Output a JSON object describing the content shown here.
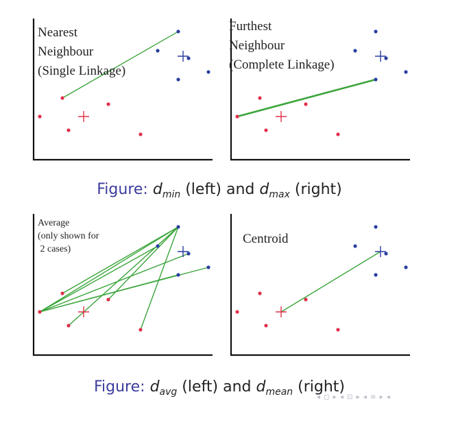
{
  "colors": {
    "red": "#e0304a",
    "blue": "#2a3fa0",
    "link": "#3aa53a",
    "axis": "#111111",
    "caption_blue": "#3c3c9e"
  },
  "panels": [
    {
      "id": "dmin",
      "title_lines": [
        "Nearest",
        "Neighbour",
        "(Single Linkage)"
      ],
      "links": [
        [
          1,
          0
        ]
      ]
    },
    {
      "id": "dmax",
      "title_lines": [
        "Furthest",
        "Neighbour",
        "(Complete Linkage)"
      ],
      "links": [
        [
          0,
          4
        ]
      ]
    },
    {
      "id": "davg",
      "title_lines": [
        "Average",
        "(only shown for",
        " 2 cases)"
      ],
      "links": [
        [
          0,
          0
        ],
        [
          0,
          1
        ],
        [
          0,
          2
        ],
        [
          0,
          3
        ],
        [
          0,
          4
        ],
        [
          1,
          0
        ],
        [
          2,
          0
        ],
        [
          3,
          0
        ],
        [
          4,
          0
        ]
      ]
    },
    {
      "id": "dmean",
      "title_lines": [
        "Centroid"
      ],
      "links": [
        [
          "centroid",
          "centroid"
        ]
      ]
    }
  ],
  "captions": [
    {
      "prefix": "Figure:",
      "sym1": "d",
      "sub1": "min",
      "mid": " (left) and ",
      "sym2": "d",
      "sub2": "max",
      "suffix": " (right)"
    },
    {
      "prefix": "Figure:",
      "sym1": "d",
      "sub1": "avg",
      "mid": " (left) and ",
      "sym2": "d",
      "sub2": "mean",
      "suffix": " (right)"
    }
  ],
  "nav_glyphs": "◂ ◻ ▸ ◂ ⊡ ▸ ◂ ≡ ▸ ◂"
}
